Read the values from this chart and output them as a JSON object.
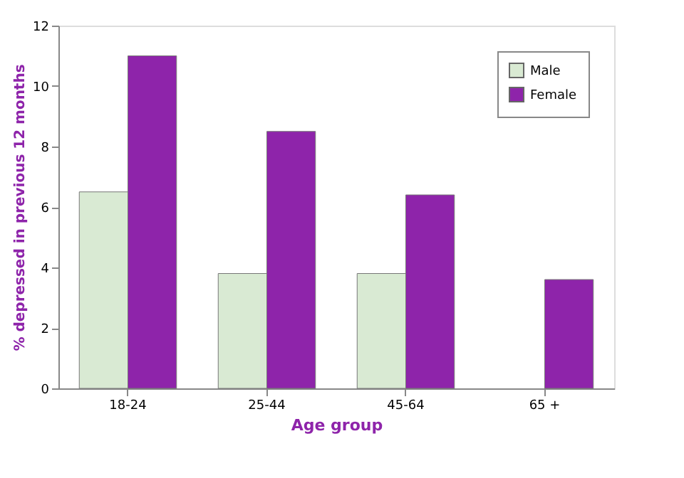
{
  "chart_data": {
    "type": "bar",
    "xlabel": "Age group",
    "ylabel": "% depressed in previous 12 months",
    "categories": [
      "18-24",
      "25-44",
      "45-64",
      "65 +"
    ],
    "series": [
      {
        "name": "Male",
        "color": "#d9ead3",
        "values": [
          6.5,
          3.8,
          3.8,
          null
        ]
      },
      {
        "name": "Female",
        "color": "#8e24aa",
        "values": [
          11,
          8.5,
          6.4,
          3.6
        ]
      }
    ],
    "ylim": [
      0,
      12
    ],
    "yticks": [
      0,
      2,
      4,
      6,
      8,
      10,
      12
    ],
    "grid": false,
    "legend": "top right"
  }
}
